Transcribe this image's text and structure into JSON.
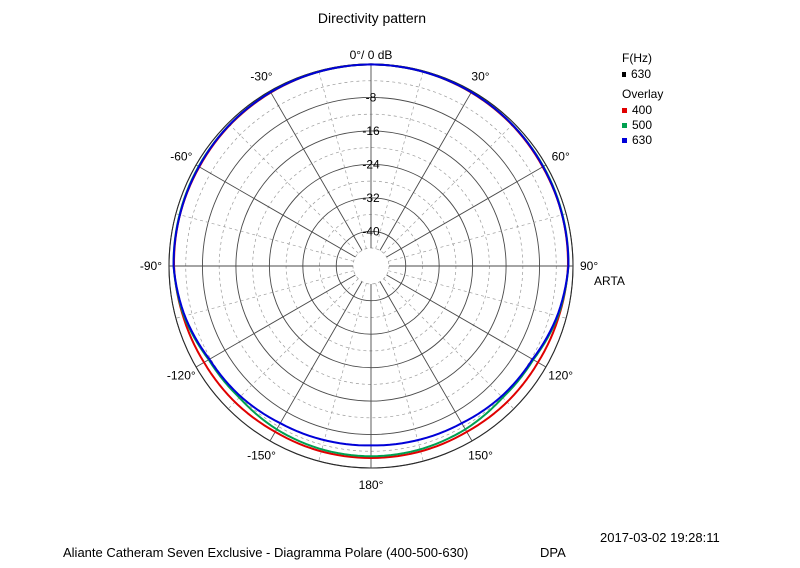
{
  "chart_data": {
    "type": "polar",
    "title": "Directivity pattern",
    "radial_axis": {
      "top_label": "0°/ 0 dB",
      "tick_labels": [
        "-8",
        "-16",
        "-24",
        "-32",
        "-40"
      ],
      "range_db": [
        -44,
        0
      ]
    },
    "angle_labels": [
      "30°",
      "60°",
      "90°",
      "120°",
      "150°",
      "180°",
      "-150°",
      "-120°",
      "-90°",
      "-60°",
      "-30°"
    ],
    "grid": true,
    "legend": {
      "header": "F(Hz)",
      "current": "630",
      "overlay_header": "Overlay",
      "entries": [
        {
          "name": "400",
          "color": "#e00000"
        },
        {
          "name": "500",
          "color": "#00a050"
        },
        {
          "name": "630",
          "color": "#0000d8"
        }
      ],
      "placement": "top-right"
    },
    "series": [
      {
        "name": "400",
        "color": "#e00000",
        "angles": [
          0,
          15,
          30,
          45,
          60,
          75,
          90,
          105,
          120,
          135,
          150,
          165,
          180
        ],
        "values_db": [
          -0.1,
          -0.2,
          -0.4,
          -0.6,
          -0.9,
          -1.0,
          -1.2,
          -1.8,
          -2.2,
          -2.3,
          -2.5,
          -2.4,
          -2.4
        ]
      },
      {
        "name": "500",
        "color": "#00a050",
        "angles": [
          0,
          15,
          30,
          45,
          60,
          75,
          90,
          105,
          120,
          135,
          150,
          165,
          180
        ],
        "values_db": [
          -0.1,
          -0.2,
          -0.3,
          -0.5,
          -0.7,
          -0.9,
          -1.1,
          -2.0,
          -3.5,
          -3.8,
          -3.2,
          -2.9,
          -2.8
        ]
      },
      {
        "name": "630",
        "color": "#0000d8",
        "angles": [
          0,
          15,
          30,
          45,
          60,
          75,
          90,
          105,
          120,
          135,
          150,
          165,
          180
        ],
        "values_db": [
          -0.1,
          -0.2,
          -0.3,
          -0.5,
          -0.8,
          -1.0,
          -1.1,
          -2.2,
          -3.7,
          -4.2,
          -4.9,
          -5.2,
          -5.4
        ]
      }
    ]
  },
  "brand": "ARTA",
  "timestamp": "2017-03-02  19:28:11",
  "footer": "Aliante Catheram Seven Exclusive - Diagramma Polare (400-500-630)",
  "footer_tag": "DPA"
}
